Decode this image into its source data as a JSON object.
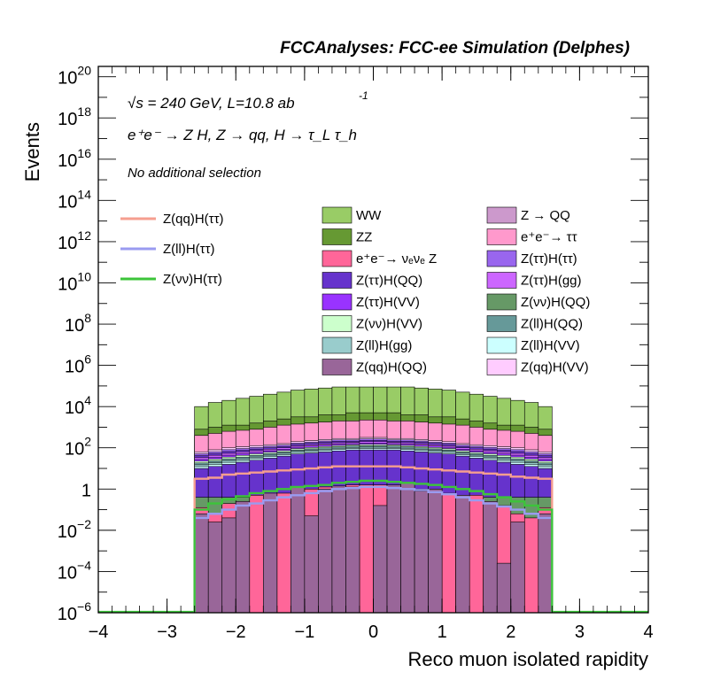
{
  "chart_data": {
    "type": "histogram",
    "title": "FCCAnalyses: FCC-ee Simulation (Delphes)",
    "annotations": {
      "energy_lumi": "√s = 240 GeV, L=10.8 ab",
      "lumi_exponent": "-1",
      "process": "e⁺e⁻ → Z H, Z → qq, H → τ_L τ_h",
      "selection": "No additional selection"
    },
    "xlabel": "Reco muon isolated rapidity",
    "ylabel": "Events",
    "xlim": [
      -4,
      4
    ],
    "ylim_log10": [
      -6,
      20.5
    ],
    "log_y": true,
    "x_ticks": [
      {
        "v": -4,
        "label": "−4"
      },
      {
        "v": -3,
        "label": "−3"
      },
      {
        "v": -2,
        "label": "−2"
      },
      {
        "v": -1,
        "label": "−1"
      },
      {
        "v": 0,
        "label": "0"
      },
      {
        "v": 1,
        "label": "1"
      },
      {
        "v": 2,
        "label": "2"
      },
      {
        "v": 3,
        "label": "3"
      },
      {
        "v": 4,
        "label": "4"
      }
    ],
    "y_ticks": [
      {
        "e": -6,
        "base": "10",
        "exp": "−6"
      },
      {
        "e": -4,
        "base": "10",
        "exp": "−4"
      },
      {
        "e": -2,
        "base": "10",
        "exp": "−2"
      },
      {
        "e": 0,
        "base": "1",
        "exp": ""
      },
      {
        "e": 2,
        "base": "10",
        "exp": "2"
      },
      {
        "e": 4,
        "base": "10",
        "exp": "4"
      },
      {
        "e": 6,
        "base": "10",
        "exp": "6"
      },
      {
        "e": 8,
        "base": "10",
        "exp": "8"
      },
      {
        "e": 10,
        "base": "10",
        "exp": "10"
      },
      {
        "e": 12,
        "base": "10",
        "exp": "12"
      },
      {
        "e": 14,
        "base": "10",
        "exp": "14"
      },
      {
        "e": 16,
        "base": "10",
        "exp": "16"
      },
      {
        "e": 18,
        "base": "10",
        "exp": "18"
      },
      {
        "e": 20,
        "base": "10",
        "exp": "20"
      }
    ],
    "bins": {
      "x_start": -2.6,
      "x_end": 2.6,
      "n": 26
    },
    "stack_log10_tops": {
      "ZZ_dark": [
        2.9,
        3.0,
        3.1,
        3.1,
        3.2,
        3.3,
        3.4,
        3.5,
        3.5,
        3.6,
        3.6,
        3.7,
        3.7,
        3.7,
        3.7,
        3.6,
        3.6,
        3.5,
        3.5,
        3.4,
        3.3,
        3.2,
        3.1,
        3.1,
        3.0,
        2.9
      ],
      "WW_total": [
        4.0,
        4.2,
        4.3,
        4.4,
        4.5,
        4.6,
        4.7,
        4.8,
        4.85,
        4.9,
        4.95,
        4.95,
        4.95,
        4.95,
        4.95,
        4.95,
        4.9,
        4.85,
        4.8,
        4.7,
        4.6,
        4.5,
        4.4,
        4.3,
        4.2,
        4.0
      ],
      "Zqq_bg_ee_tautau": [
        2.6,
        2.7,
        2.8,
        2.85,
        2.9,
        3.0,
        3.1,
        3.15,
        3.2,
        3.25,
        3.3,
        3.3,
        3.35,
        3.35,
        3.3,
        3.3,
        3.25,
        3.2,
        3.15,
        3.1,
        3.0,
        2.9,
        2.85,
        2.8,
        2.7,
        2.6
      ],
      "lilac_ZQQ": [
        1.8,
        1.9,
        2.0,
        2.05,
        2.1,
        2.15,
        2.2,
        2.3,
        2.35,
        2.4,
        2.45,
        2.45,
        2.5,
        2.5,
        2.45,
        2.45,
        2.4,
        2.35,
        2.3,
        2.2,
        2.15,
        2.1,
        2.05,
        2.0,
        1.9,
        1.8
      ],
      "purple_bands": [
        1.0,
        1.1,
        1.2,
        1.3,
        1.4,
        1.5,
        1.6,
        1.7,
        1.75,
        1.8,
        1.85,
        1.9,
        1.9,
        1.9,
        1.9,
        1.85,
        1.8,
        1.75,
        1.7,
        1.6,
        1.5,
        1.4,
        1.3,
        1.2,
        1.1,
        1.0
      ],
      "pink_eevvZ": [
        -0.9,
        -1.2,
        -0.7,
        -0.6,
        -0.3,
        -0.4,
        -0.2,
        -0.1,
        0.0,
        0.1,
        0.15,
        0.2,
        0.2,
        0.2,
        0.15,
        0.1,
        0.0,
        -0.1,
        -0.2,
        -0.4,
        -0.3,
        -0.7,
        -0.8,
        -1.2,
        -1.4,
        -0.9
      ],
      "Zqq_HQQ_mauve": [
        -1.2,
        -1.6,
        -1.4,
        -0.6,
        -6.0,
        -0.2,
        -6.0,
        0.1,
        -1.3,
        0.0,
        0.15,
        0.1,
        -6.0,
        -0.8,
        0.2,
        0.3,
        -0.1,
        0.0,
        -6.0,
        -0.3,
        -6.0,
        -0.6,
        -3.6,
        -1.6,
        -6.0,
        -1.2
      ]
    },
    "lines": [
      {
        "name": "Z(qq)H(ττ)",
        "color": "#f59e8f",
        "log10": [
          0.5,
          0.55,
          0.7,
          0.75,
          0.8,
          0.85,
          0.9,
          0.95,
          1.0,
          1.05,
          1.1,
          1.1,
          1.1,
          1.1,
          1.1,
          1.05,
          1.0,
          0.95,
          0.9,
          0.85,
          0.8,
          0.75,
          0.7,
          0.6,
          0.55,
          0.5
        ]
      },
      {
        "name": "Z(ll)H(ττ)",
        "color": "#9a9bf0",
        "log10": [
          -1.4,
          -1.2,
          -1.0,
          -0.8,
          -0.7,
          -0.55,
          -0.4,
          -0.3,
          -0.2,
          -0.1,
          0.0,
          0.05,
          0.1,
          0.1,
          0.05,
          0.0,
          -0.05,
          -0.15,
          -0.25,
          -0.4,
          -0.55,
          -0.7,
          -0.85,
          -1.0,
          -1.2,
          -1.4
        ]
      },
      {
        "name": "Z(νν)H(ττ)",
        "color": "#3cc43a",
        "log10": [
          -1.0,
          -0.7,
          -0.5,
          -0.35,
          -0.2,
          -0.1,
          0.0,
          0.1,
          0.15,
          0.2,
          0.3,
          0.35,
          0.4,
          0.4,
          0.35,
          0.3,
          0.25,
          0.2,
          0.1,
          0.0,
          -0.1,
          -0.25,
          -0.4,
          -0.6,
          -0.8,
          -1.0
        ]
      }
    ],
    "legend_lines": [
      {
        "label": "Z(qq)H(ττ)",
        "color": "#f59e8f"
      },
      {
        "label": "Z(ll)H(ττ)",
        "color": "#9a9bf0"
      },
      {
        "label": "Z(νν)H(ττ)",
        "color": "#3cc43a"
      }
    ],
    "legend_boxes": [
      {
        "label": "WW",
        "color": "#99cc66"
      },
      {
        "label": "Z → QQ",
        "color": "#cc99cc"
      },
      {
        "label": "ZZ",
        "color": "#669933"
      },
      {
        "label": "e⁺e⁻→ ττ",
        "color": "#ff99cc"
      },
      {
        "label": "e⁺e⁻→ νₑνₑ Z",
        "color": "#ff6699"
      },
      {
        "label": "Z(ττ)H(ττ)",
        "color": "#9966ee"
      },
      {
        "label": "Z(ττ)H(QQ)",
        "color": "#6633cc"
      },
      {
        "label": "Z(ττ)H(gg)",
        "color": "#cc66ff"
      },
      {
        "label": "Z(ττ)H(VV)",
        "color": "#9933ff"
      },
      {
        "label": "Z(νν)H(QQ)",
        "color": "#669966"
      },
      {
        "label": "Z(νν)H(VV)",
        "color": "#ccffcc"
      },
      {
        "label": "Z(ll)H(QQ)",
        "color": "#669999"
      },
      {
        "label": "Z(ll)H(gg)",
        "color": "#99cccc"
      },
      {
        "label": "Z(ll)H(VV)",
        "color": "#ccffff"
      },
      {
        "label": "Z(qq)H(QQ)",
        "color": "#996699"
      },
      {
        "label": "Z(qq)H(VV)",
        "color": "#ffccff"
      }
    ]
  }
}
